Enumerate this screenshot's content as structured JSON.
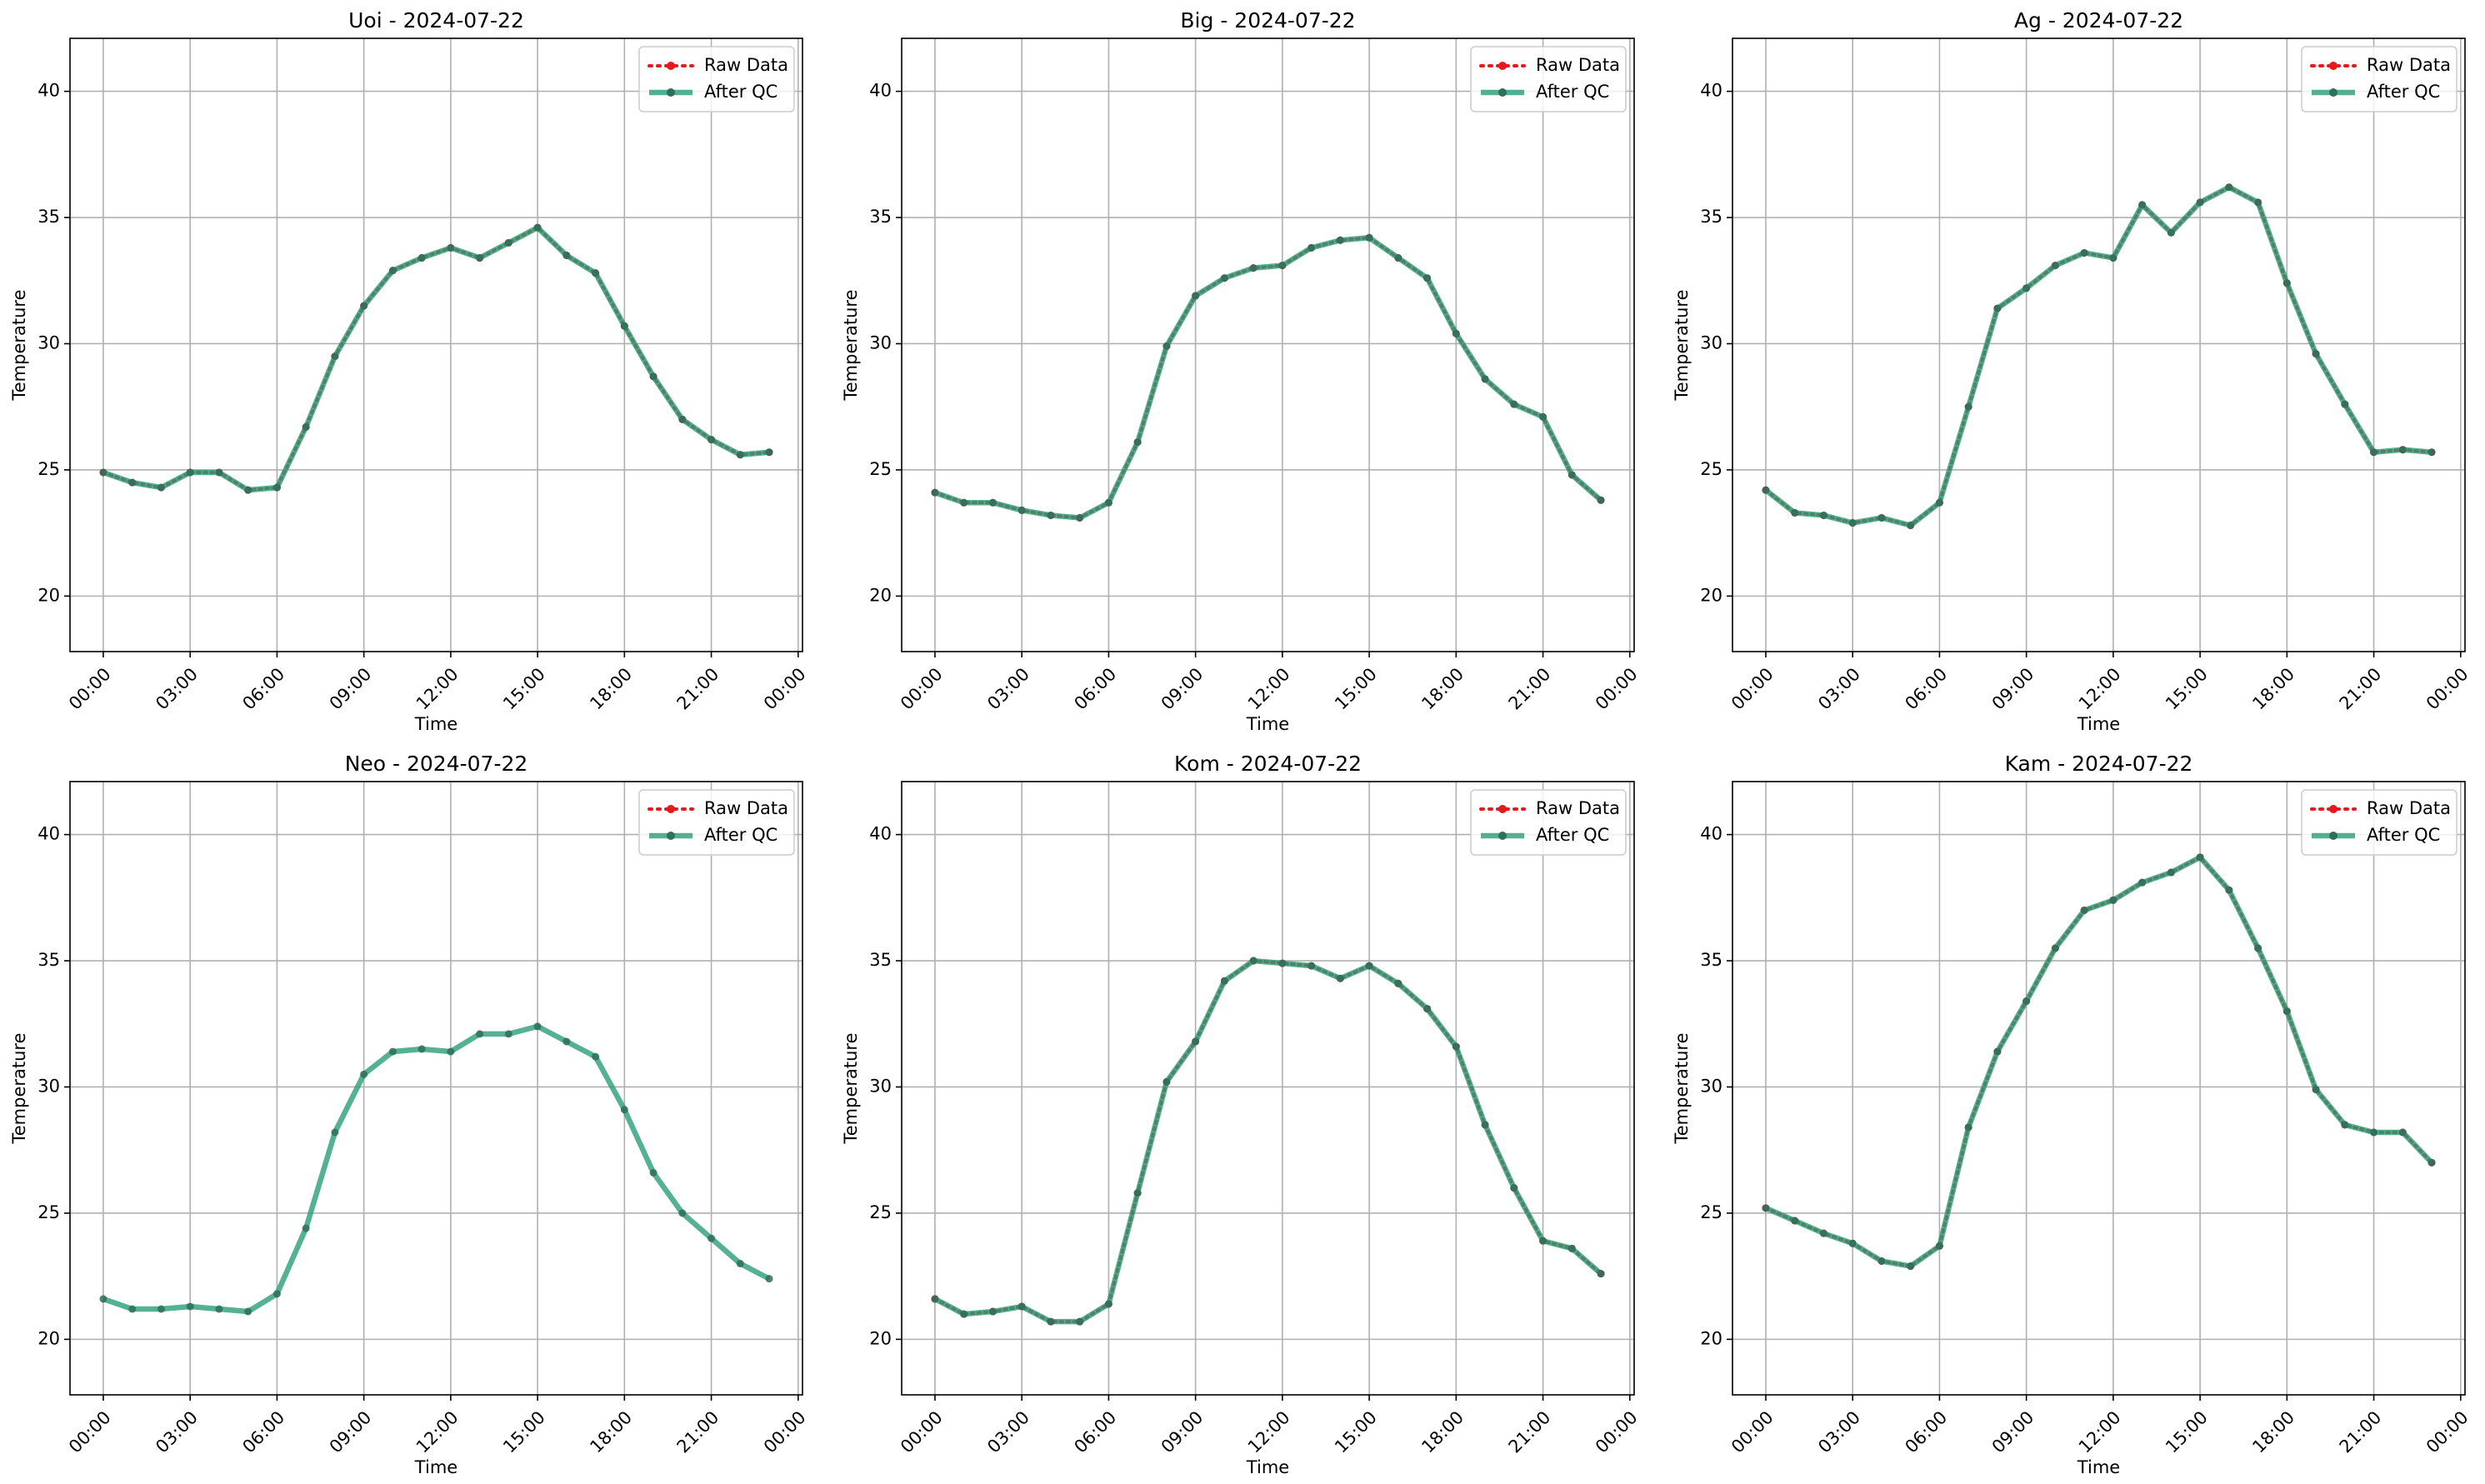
{
  "chart_data": [
    {
      "type": "line",
      "title": "Uoi - 2024-07-22",
      "xlabel": "Time",
      "ylabel": "Temperature",
      "x": [
        0,
        1,
        2,
        3,
        4,
        5,
        6,
        7,
        8,
        9,
        10,
        11,
        12,
        13,
        14,
        15,
        16,
        17,
        18,
        19,
        20,
        21,
        22,
        23
      ],
      "xlim": [
        -1.15,
        24.15
      ],
      "xticks": [
        {
          "value": 0,
          "label": "00:00"
        },
        {
          "value": 3,
          "label": "03:00"
        },
        {
          "value": 6,
          "label": "06:00"
        },
        {
          "value": 9,
          "label": "09:00"
        },
        {
          "value": 12,
          "label": "12:00"
        },
        {
          "value": 15,
          "label": "15:00"
        },
        {
          "value": 18,
          "label": "18:00"
        },
        {
          "value": 21,
          "label": "21:00"
        },
        {
          "value": 24,
          "label": "00:00"
        }
      ],
      "ylim": [
        17.8,
        42.1
      ],
      "yticks": [
        20,
        25,
        30,
        35,
        40
      ],
      "grid": true,
      "legend": "upper right",
      "series": [
        {
          "name": "Raw Data",
          "color": "#e41a1c",
          "linestyle": "dotted",
          "values": [
            24.9,
            24.5,
            24.3,
            24.9,
            24.9,
            24.2,
            24.3,
            26.7,
            29.5,
            31.5,
            32.9,
            33.4,
            33.8,
            33.4,
            34.0,
            34.6,
            33.5,
            32.8,
            30.7,
            28.7,
            27.0,
            26.2,
            25.6,
            25.7
          ]
        },
        {
          "name": "After QC",
          "color": "#2a9d78",
          "linestyle": "solid",
          "values": [
            24.9,
            24.5,
            24.3,
            24.9,
            24.9,
            24.2,
            24.3,
            26.7,
            29.5,
            31.5,
            32.9,
            33.4,
            33.8,
            33.4,
            34.0,
            34.6,
            33.5,
            32.8,
            30.7,
            28.7,
            27.0,
            26.2,
            25.6,
            25.7
          ]
        }
      ]
    },
    {
      "type": "line",
      "title": "Big - 2024-07-22",
      "xlabel": "Time",
      "ylabel": "Temperature",
      "x": [
        0,
        1,
        2,
        3,
        4,
        5,
        6,
        7,
        8,
        9,
        10,
        11,
        12,
        13,
        14,
        15,
        16,
        17,
        18,
        19,
        20,
        21,
        22,
        23
      ],
      "xlim": [
        -1.15,
        24.15
      ],
      "xticks": [
        {
          "value": 0,
          "label": "00:00"
        },
        {
          "value": 3,
          "label": "03:00"
        },
        {
          "value": 6,
          "label": "06:00"
        },
        {
          "value": 9,
          "label": "09:00"
        },
        {
          "value": 12,
          "label": "12:00"
        },
        {
          "value": 15,
          "label": "15:00"
        },
        {
          "value": 18,
          "label": "18:00"
        },
        {
          "value": 21,
          "label": "21:00"
        },
        {
          "value": 24,
          "label": "00:00"
        }
      ],
      "ylim": [
        17.8,
        42.1
      ],
      "yticks": [
        20,
        25,
        30,
        35,
        40
      ],
      "grid": true,
      "legend": "upper right",
      "series": [
        {
          "name": "Raw Data",
          "color": "#e41a1c",
          "linestyle": "dotted",
          "values": [
            24.1,
            23.7,
            23.7,
            23.4,
            23.2,
            23.1,
            23.7,
            26.1,
            29.9,
            31.9,
            32.6,
            33.0,
            33.1,
            33.8,
            34.1,
            34.2,
            33.4,
            32.6,
            30.4,
            28.6,
            27.6,
            27.1,
            24.8,
            23.8
          ]
        },
        {
          "name": "After QC",
          "color": "#2a9d78",
          "linestyle": "solid",
          "values": [
            24.1,
            23.7,
            23.7,
            23.4,
            23.2,
            23.1,
            23.7,
            26.1,
            29.9,
            31.9,
            32.6,
            33.0,
            33.1,
            33.8,
            34.1,
            34.2,
            33.4,
            32.6,
            30.4,
            28.6,
            27.6,
            27.1,
            24.8,
            23.8
          ]
        }
      ]
    },
    {
      "type": "line",
      "title": "Ag - 2024-07-22",
      "xlabel": "Time",
      "ylabel": "Temperature",
      "x": [
        0,
        1,
        2,
        3,
        4,
        5,
        6,
        7,
        8,
        9,
        10,
        11,
        12,
        13,
        14,
        15,
        16,
        17,
        18,
        19,
        20,
        21,
        22,
        23
      ],
      "xlim": [
        -1.15,
        24.15
      ],
      "xticks": [
        {
          "value": 0,
          "label": "00:00"
        },
        {
          "value": 3,
          "label": "03:00"
        },
        {
          "value": 6,
          "label": "06:00"
        },
        {
          "value": 9,
          "label": "09:00"
        },
        {
          "value": 12,
          "label": "12:00"
        },
        {
          "value": 15,
          "label": "15:00"
        },
        {
          "value": 18,
          "label": "18:00"
        },
        {
          "value": 21,
          "label": "21:00"
        },
        {
          "value": 24,
          "label": "00:00"
        }
      ],
      "ylim": [
        17.8,
        42.1
      ],
      "yticks": [
        20,
        25,
        30,
        35,
        40
      ],
      "grid": true,
      "legend": "upper right",
      "series": [
        {
          "name": "Raw Data",
          "color": "#e41a1c",
          "linestyle": "dotted",
          "values": [
            24.2,
            23.3,
            23.2,
            22.9,
            23.1,
            22.8,
            23.7,
            27.5,
            31.4,
            32.2,
            33.1,
            33.6,
            33.4,
            35.5,
            34.4,
            35.6,
            36.2,
            35.6,
            32.4,
            29.6,
            27.6,
            25.7,
            25.8,
            25.7
          ]
        },
        {
          "name": "After QC",
          "color": "#2a9d78",
          "linestyle": "solid",
          "values": [
            24.2,
            23.3,
            23.2,
            22.9,
            23.1,
            22.8,
            23.7,
            27.5,
            31.4,
            32.2,
            33.1,
            33.6,
            33.4,
            35.5,
            34.4,
            35.6,
            36.2,
            35.6,
            32.4,
            29.6,
            27.6,
            25.7,
            25.8,
            25.7
          ]
        }
      ]
    },
    {
      "type": "line",
      "title": "Neo - 2024-07-22",
      "xlabel": "Time",
      "ylabel": "Temperature",
      "x": [
        0,
        1,
        2,
        3,
        4,
        5,
        6,
        7,
        8,
        9,
        10,
        11,
        12,
        13,
        14,
        15,
        16,
        17,
        18,
        19,
        20,
        21,
        22,
        23
      ],
      "xlim": [
        -1.15,
        24.15
      ],
      "xticks": [
        {
          "value": 0,
          "label": "00:00"
        },
        {
          "value": 3,
          "label": "03:00"
        },
        {
          "value": 6,
          "label": "06:00"
        },
        {
          "value": 9,
          "label": "09:00"
        },
        {
          "value": 12,
          "label": "12:00"
        },
        {
          "value": 15,
          "label": "15:00"
        },
        {
          "value": 18,
          "label": "18:00"
        },
        {
          "value": 21,
          "label": "21:00"
        },
        {
          "value": 24,
          "label": "00:00"
        }
      ],
      "ylim": [
        17.8,
        42.1
      ],
      "yticks": [
        20,
        25,
        30,
        35,
        40
      ],
      "grid": true,
      "legend": "upper right",
      "series": [
        {
          "name": "Raw Data",
          "color": "#e41a1c",
          "linestyle": "dotted",
          "values": [
            null,
            null,
            null,
            null,
            null,
            null,
            null,
            null,
            null,
            null,
            null,
            null,
            null,
            null,
            null,
            null,
            null,
            null,
            null,
            null,
            null,
            null,
            null,
            null
          ]
        },
        {
          "name": "After QC",
          "color": "#2a9d78",
          "linestyle": "solid",
          "values": [
            21.6,
            21.2,
            21.2,
            21.3,
            21.2,
            21.1,
            21.8,
            24.4,
            28.2,
            30.5,
            31.4,
            31.5,
            31.4,
            32.1,
            32.1,
            32.4,
            31.8,
            31.2,
            29.1,
            26.6,
            25.0,
            24.0,
            23.0,
            22.4
          ]
        }
      ]
    },
    {
      "type": "line",
      "title": "Kom - 2024-07-22",
      "xlabel": "Time",
      "ylabel": "Temperature",
      "x": [
        0,
        1,
        2,
        3,
        4,
        5,
        6,
        7,
        8,
        9,
        10,
        11,
        12,
        13,
        14,
        15,
        16,
        17,
        18,
        19,
        20,
        21,
        22,
        23
      ],
      "xlim": [
        -1.15,
        24.15
      ],
      "xticks": [
        {
          "value": 0,
          "label": "00:00"
        },
        {
          "value": 3,
          "label": "03:00"
        },
        {
          "value": 6,
          "label": "06:00"
        },
        {
          "value": 9,
          "label": "09:00"
        },
        {
          "value": 12,
          "label": "12:00"
        },
        {
          "value": 15,
          "label": "15:00"
        },
        {
          "value": 18,
          "label": "18:00"
        },
        {
          "value": 21,
          "label": "21:00"
        },
        {
          "value": 24,
          "label": "00:00"
        }
      ],
      "ylim": [
        17.8,
        42.1
      ],
      "yticks": [
        20,
        25,
        30,
        35,
        40
      ],
      "grid": true,
      "legend": "upper right",
      "series": [
        {
          "name": "Raw Data",
          "color": "#e41a1c",
          "linestyle": "dotted",
          "values": [
            21.6,
            21.0,
            21.1,
            21.3,
            20.7,
            20.7,
            21.4,
            25.8,
            30.2,
            31.8,
            34.2,
            35.0,
            34.9,
            34.8,
            34.3,
            34.8,
            34.1,
            33.1,
            31.6,
            28.5,
            26.0,
            23.9,
            23.6,
            22.6
          ]
        },
        {
          "name": "After QC",
          "color": "#2a9d78",
          "linestyle": "solid",
          "values": [
            21.6,
            21.0,
            21.1,
            21.3,
            20.7,
            20.7,
            21.4,
            25.8,
            30.2,
            31.8,
            34.2,
            35.0,
            34.9,
            34.8,
            34.3,
            34.8,
            34.1,
            33.1,
            31.6,
            28.5,
            26.0,
            23.9,
            23.6,
            22.6
          ]
        }
      ]
    },
    {
      "type": "line",
      "title": "Kam - 2024-07-22",
      "xlabel": "Time",
      "ylabel": "Temperature",
      "x": [
        0,
        1,
        2,
        3,
        4,
        5,
        6,
        7,
        8,
        9,
        10,
        11,
        12,
        13,
        14,
        15,
        16,
        17,
        18,
        19,
        20,
        21,
        22,
        23
      ],
      "xlim": [
        -1.15,
        24.15
      ],
      "xticks": [
        {
          "value": 0,
          "label": "00:00"
        },
        {
          "value": 3,
          "label": "03:00"
        },
        {
          "value": 6,
          "label": "06:00"
        },
        {
          "value": 9,
          "label": "09:00"
        },
        {
          "value": 12,
          "label": "12:00"
        },
        {
          "value": 15,
          "label": "15:00"
        },
        {
          "value": 18,
          "label": "18:00"
        },
        {
          "value": 21,
          "label": "21:00"
        },
        {
          "value": 24,
          "label": "00:00"
        }
      ],
      "ylim": [
        17.8,
        42.1
      ],
      "yticks": [
        20,
        25,
        30,
        35,
        40
      ],
      "grid": true,
      "legend": "upper right",
      "series": [
        {
          "name": "Raw Data",
          "color": "#e41a1c",
          "linestyle": "dotted",
          "values": [
            25.2,
            24.7,
            24.2,
            23.8,
            23.1,
            22.9,
            23.7,
            28.4,
            31.4,
            33.4,
            35.5,
            37.0,
            37.4,
            38.1,
            38.5,
            39.1,
            37.8,
            35.5,
            33.0,
            29.9,
            28.5,
            28.2,
            28.2,
            27.0
          ]
        },
        {
          "name": "After QC",
          "color": "#2a9d78",
          "linestyle": "solid",
          "values": [
            25.2,
            24.7,
            24.2,
            23.8,
            23.1,
            22.9,
            23.7,
            28.4,
            31.4,
            33.4,
            35.5,
            37.0,
            37.4,
            38.1,
            38.5,
            39.1,
            37.8,
            35.5,
            33.0,
            29.9,
            28.5,
            28.2,
            28.2,
            27.0
          ]
        }
      ]
    }
  ]
}
